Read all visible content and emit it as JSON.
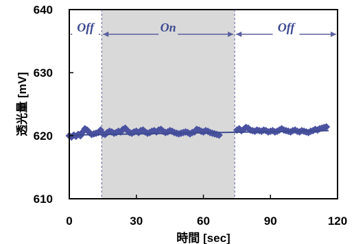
{
  "chart_data": {
    "type": "scatter",
    "xlabel": "時間 [sec]",
    "ylabel": "透光量 [mV]",
    "xlim": [
      0,
      120
    ],
    "ylim": [
      610,
      640
    ],
    "xticks": [
      "0",
      "30",
      "60",
      "90",
      "120"
    ],
    "yticks": [
      "610",
      "620",
      "630",
      "640"
    ],
    "grid": false,
    "phases": [
      {
        "label": "Off",
        "x_start": 0,
        "x_end": 14.5,
        "shaded": false
      },
      {
        "label": "On",
        "x_start": 14.5,
        "x_end": 74,
        "shaded": true
      },
      {
        "label": "Off",
        "x_start": 74,
        "x_end": 120,
        "shaded": false
      }
    ],
    "series": [
      {
        "marker": "diamond",
        "points": [
          [
            0,
            620.0
          ],
          [
            1,
            619.8
          ],
          [
            2,
            620.1
          ],
          [
            3,
            619.9
          ],
          [
            4,
            620.2
          ],
          [
            5,
            620.0
          ],
          [
            6,
            620.6
          ],
          [
            7,
            621.1
          ],
          [
            8,
            620.9
          ],
          [
            9,
            620.5
          ],
          [
            10,
            620.2
          ],
          [
            11,
            620.3
          ],
          [
            12,
            620.4
          ],
          [
            13,
            620.5
          ],
          [
            14,
            620.9
          ],
          [
            15,
            620.3
          ],
          [
            16,
            620.2
          ],
          [
            17,
            620.5
          ],
          [
            18,
            620.7
          ],
          [
            19,
            620.6
          ],
          [
            20,
            620.4
          ],
          [
            21,
            620.5
          ],
          [
            22,
            620.7
          ],
          [
            23,
            620.6
          ],
          [
            24,
            621.0
          ],
          [
            25,
            621.2
          ],
          [
            26,
            620.8
          ],
          [
            27,
            620.5
          ],
          [
            28,
            620.4
          ],
          [
            29,
            620.6
          ],
          [
            30,
            620.7
          ],
          [
            31,
            620.5
          ],
          [
            32,
            620.8
          ],
          [
            33,
            620.9
          ],
          [
            34,
            620.6
          ],
          [
            35,
            620.4
          ],
          [
            36,
            620.5
          ],
          [
            37,
            620.7
          ],
          [
            38,
            620.8
          ],
          [
            39,
            620.6
          ],
          [
            40,
            620.9
          ],
          [
            41,
            621.0
          ],
          [
            42,
            620.7
          ],
          [
            43,
            620.5
          ],
          [
            44,
            620.6
          ],
          [
            45,
            620.8
          ],
          [
            46,
            620.7
          ],
          [
            47,
            620.5
          ],
          [
            48,
            620.4
          ],
          [
            49,
            620.3
          ],
          [
            50,
            620.4
          ],
          [
            51,
            620.5
          ],
          [
            52,
            620.6
          ],
          [
            53,
            620.5
          ],
          [
            54,
            620.3
          ],
          [
            55,
            620.5
          ],
          [
            56,
            620.6
          ],
          [
            57,
            621.0
          ],
          [
            58,
            620.9
          ],
          [
            59,
            620.7
          ],
          [
            60,
            620.6
          ],
          [
            61,
            620.8
          ],
          [
            62,
            620.7
          ],
          [
            63,
            620.5
          ],
          [
            64,
            620.4
          ],
          [
            65,
            620.3
          ],
          [
            66,
            620.2
          ],
          [
            67,
            620.1
          ],
          [
            75,
            620.9
          ],
          [
            76,
            621.1
          ],
          [
            77,
            620.8
          ],
          [
            78,
            621.0
          ],
          [
            79,
            621.3
          ],
          [
            80,
            621.2
          ],
          [
            81,
            620.9
          ],
          [
            82,
            620.8
          ],
          [
            83,
            620.7
          ],
          [
            84,
            620.9
          ],
          [
            85,
            620.8
          ],
          [
            86,
            620.7
          ],
          [
            87,
            620.9
          ],
          [
            88,
            620.8
          ],
          [
            89,
            620.6
          ],
          [
            90,
            620.7
          ],
          [
            91,
            620.8
          ],
          [
            92,
            620.6
          ],
          [
            93,
            620.7
          ],
          [
            94,
            620.9
          ],
          [
            95,
            621.1
          ],
          [
            96,
            620.9
          ],
          [
            97,
            620.8
          ],
          [
            98,
            620.7
          ],
          [
            99,
            620.6
          ],
          [
            100,
            620.8
          ],
          [
            101,
            620.9
          ],
          [
            102,
            620.7
          ],
          [
            103,
            620.6
          ],
          [
            104,
            620.8
          ],
          [
            105,
            620.7
          ],
          [
            106,
            620.6
          ],
          [
            107,
            620.5
          ],
          [
            108,
            620.7
          ],
          [
            109,
            620.8
          ],
          [
            110,
            621.0
          ],
          [
            111,
            620.9
          ],
          [
            112,
            621.1
          ],
          [
            113,
            621.2
          ],
          [
            114,
            621.3
          ],
          [
            115,
            621.4
          ]
        ]
      }
    ],
    "trendline": {
      "x": [
        0,
        116
      ],
      "y": [
        620.1,
        620.8
      ]
    },
    "colors": {
      "marker": "#4a52a0",
      "line": "#3d4a8f",
      "shade": "#d9d9d9",
      "arrow": "#5b5f9e"
    }
  }
}
